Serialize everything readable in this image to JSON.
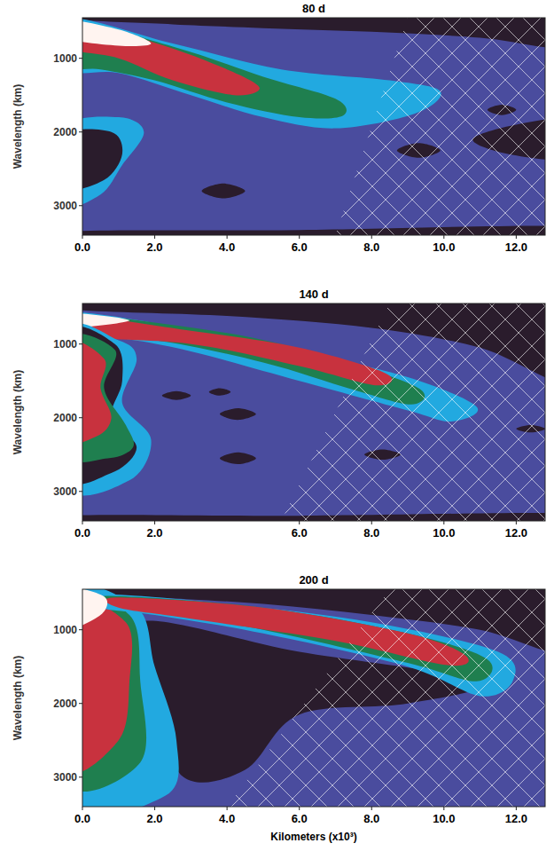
{
  "chart_data": [
    {
      "type": "contour",
      "title": "80 d",
      "ylabel": "Wavelength (km)",
      "color": "#4a4c9e",
      "xlim": [
        0,
        12.8
      ],
      "ylim": [
        450,
        3400
      ],
      "xticks": [
        {
          "value": 0,
          "label": "0.0"
        },
        {
          "value": 2,
          "label": "2.0"
        },
        {
          "value": 4,
          "label": "4.0"
        },
        {
          "value": 6,
          "label": "6.0"
        },
        {
          "value": 8,
          "label": "8.0"
        },
        {
          "value": 10,
          "label": "10.0"
        },
        {
          "value": 12,
          "label": "12.0"
        }
      ],
      "yticks": [
        1000,
        2000,
        3000
      ],
      "contours": [
        {
          "color": "#2a1c2c",
          "x": [
            -0.5,
            13.5,
            13.5,
            11,
            8,
            5,
            2.5,
            -0.5
          ],
          "y": [
            300,
            300,
            850,
            720,
            640,
            590,
            540,
            460
          ]
        },
        {
          "color": "#22a9e0",
          "x": [
            -0.5,
            1,
            1.7,
            1.1,
            0.5,
            -0.5
          ],
          "y": [
            1950,
            1800,
            2000,
            2450,
            2850,
            2950
          ]
        },
        {
          "color": "#2a1c2c",
          "x": [
            -0.5,
            0.8,
            1.1,
            0.6,
            -0.5
          ],
          "y": [
            2050,
            2000,
            2300,
            2650,
            2750
          ]
        },
        {
          "color": "#2a1c2c",
          "x": [
            3.3,
            3.9,
            4.5,
            3.9
          ],
          "y": [
            2800,
            2700,
            2800,
            2900
          ]
        },
        {
          "color": "#2a1c2c",
          "x": [
            8.7,
            9.3,
            9.9,
            9.3
          ],
          "y": [
            2250,
            2150,
            2250,
            2350
          ]
        },
        {
          "color": "#2a1c2c",
          "x": [
            10.8,
            12,
            13.5,
            13.5,
            11.8
          ],
          "y": [
            2100,
            1900,
            1850,
            2350,
            2300
          ]
        },
        {
          "color": "#2a1c2c",
          "x": [
            11.2,
            11.6,
            12,
            11.6
          ],
          "y": [
            1700,
            1630,
            1700,
            1770
          ]
        },
        {
          "color": "#2a1c2c",
          "x": [
            -0.5,
            6,
            13.5,
            13.5,
            -0.5
          ],
          "y": [
            3350,
            3330,
            3280,
            3500,
            3500
          ]
        },
        {
          "color": "#22a9e0",
          "x": [
            -0.5,
            2.5,
            5.5,
            8.5,
            9.9,
            9.2,
            7,
            5,
            3,
            1,
            -0.5
          ],
          "y": [
            460,
            800,
            1150,
            1300,
            1450,
            1750,
            1950,
            1800,
            1500,
            1200,
            1150
          ]
        },
        {
          "color": "#1f7f4f",
          "x": [
            -0.5,
            2.5,
            5,
            7,
            7.2,
            6,
            4,
            2,
            0.5,
            -0.5
          ],
          "y": [
            500,
            840,
            1250,
            1550,
            1780,
            1800,
            1600,
            1300,
            1150,
            1100
          ]
        },
        {
          "color": "#c8323e",
          "x": [
            -0.5,
            2,
            4,
            4.9,
            4.2,
            2.5,
            1,
            -0.5
          ],
          "y": [
            500,
            790,
            1150,
            1400,
            1500,
            1300,
            1000,
            850
          ]
        },
        {
          "color": "#fff4f0",
          "x": [
            -0.5,
            1,
            1.9,
            1,
            -0.5
          ],
          "y": [
            480,
            610,
            800,
            830,
            720
          ]
        }
      ],
      "hatched_region": {
        "x": [
          9,
          12.8,
          12.8,
          7
        ],
        "y": [
          450,
          450,
          3400,
          3400
        ]
      }
    },
    {
      "type": "contour",
      "title": "140 d",
      "ylabel": "Wavelength (km)",
      "color": "#4a4c9e",
      "xlim": [
        0,
        12.8
      ],
      "ylim": [
        450,
        3400
      ],
      "xticks": [
        {
          "value": 0,
          "label": "0.0"
        },
        {
          "value": 2,
          "label": "2.0"
        },
        {
          "value": 6,
          "label": "6.0"
        },
        {
          "value": 8,
          "label": "8.0"
        },
        {
          "value": 10,
          "label": "10.0"
        },
        {
          "value": 12,
          "label": "12.0"
        }
      ],
      "yticks": [
        1000,
        2000,
        3000
      ],
      "contours": [
        {
          "color": "#2a1c2c",
          "x": [
            -0.5,
            13.5,
            13.5,
            11,
            8,
            4,
            -0.5
          ],
          "y": [
            300,
            300,
            1500,
            1050,
            780,
            620,
            520
          ]
        },
        {
          "color": "#2a1c2c",
          "x": [
            2.2,
            2.6,
            3,
            2.6
          ],
          "y": [
            1700,
            1640,
            1700,
            1760
          ]
        },
        {
          "color": "#2a1c2c",
          "x": [
            3.5,
            3.8,
            4.1,
            3.8
          ],
          "y": [
            1650,
            1600,
            1650,
            1700
          ]
        },
        {
          "color": "#2a1c2c",
          "x": [
            3.8,
            4.3,
            4.8,
            4.3
          ],
          "y": [
            1950,
            1870,
            1950,
            2030
          ]
        },
        {
          "color": "#2a1c2c",
          "x": [
            3.8,
            4.3,
            4.8,
            4.3
          ],
          "y": [
            2550,
            2470,
            2550,
            2630
          ]
        },
        {
          "color": "#2a1c2c",
          "x": [
            7.8,
            8.3,
            8.8,
            8.3
          ],
          "y": [
            2500,
            2430,
            2500,
            2570
          ]
        },
        {
          "color": "#2a1c2c",
          "x": [
            12,
            12.4,
            12.8,
            12.4
          ],
          "y": [
            2150,
            2100,
            2150,
            2200
          ]
        },
        {
          "color": "#2a1c2c",
          "x": [
            -0.5,
            6,
            13.5,
            13.5,
            -0.5
          ],
          "y": [
            3330,
            3330,
            3300,
            3500,
            3500
          ]
        },
        {
          "color": "#22a9e0",
          "x": [
            -0.5,
            3,
            6,
            9,
            10.9,
            10.2,
            9,
            6,
            3,
            1,
            -0.5
          ],
          "y": [
            560,
            800,
            1100,
            1450,
            1850,
            2050,
            1900,
            1500,
            1100,
            920,
            900
          ]
        },
        {
          "color": "#1f7f4f",
          "x": [
            -0.5,
            4,
            7,
            9.3,
            9.1,
            7.5,
            5,
            2,
            -0.5
          ],
          "y": [
            590,
            850,
            1200,
            1600,
            1820,
            1620,
            1250,
            950,
            900
          ]
        },
        {
          "color": "#c8323e",
          "x": [
            -0.5,
            3,
            6,
            8.4,
            8.1,
            6,
            3,
            -0.5
          ],
          "y": [
            600,
            820,
            1050,
            1400,
            1560,
            1300,
            1000,
            880
          ]
        },
        {
          "color": "#fff4f0",
          "x": [
            -0.5,
            1.3,
            -0.5
          ],
          "y": [
            580,
            680,
            780
          ]
        },
        {
          "color": "#22a9e0",
          "x": [
            -0.5,
            1,
            1.5,
            1.1,
            1.9,
            1.3,
            -0.5
          ],
          "y": [
            850,
            950,
            1200,
            1800,
            2300,
            2850,
            2900
          ]
        },
        {
          "color": "#2a1c2c",
          "x": [
            -0.5,
            0.9,
            1.1,
            0.8,
            1.5,
            0.8,
            -0.5
          ],
          "y": [
            880,
            1000,
            1500,
            2000,
            2400,
            2750,
            2750
          ]
        },
        {
          "color": "#1f7f4f",
          "x": [
            -0.5,
            0.9,
            0.6,
            1.2,
            1.4,
            0.7,
            -0.5
          ],
          "y": [
            950,
            1080,
            1600,
            2100,
            2400,
            2550,
            2450
          ]
        },
        {
          "color": "#c8323e",
          "x": [
            -0.5,
            0.6,
            0.5,
            0.8,
            0.4,
            -0.5
          ],
          "y": [
            1000,
            1200,
            1600,
            2000,
            2250,
            2250
          ]
        }
      ],
      "hatched_region": {
        "x": [
          8.5,
          12.8,
          12.8,
          5.5
        ],
        "y": [
          450,
          450,
          3400,
          3400
        ]
      }
    },
    {
      "type": "contour",
      "title": "200 d",
      "ylabel": "Wavelength (km)",
      "xlabel": "Kilometers (x10³)",
      "color": "#4a4c9e",
      "xlim": [
        0,
        12.8
      ],
      "ylim": [
        450,
        3400
      ],
      "xticks": [
        {
          "value": 0,
          "label": "0.0"
        },
        {
          "value": 2,
          "label": "2.0"
        },
        {
          "value": 4,
          "label": "4.0"
        },
        {
          "value": 6,
          "label": "6.0"
        },
        {
          "value": 8,
          "label": "8.0"
        },
        {
          "value": 10,
          "label": "10.0"
        },
        {
          "value": 12,
          "label": "12.0"
        }
      ],
      "yticks": [
        1000,
        2000,
        3000
      ],
      "contours": [
        {
          "color": "#2a1c2c",
          "x": [
            -0.5,
            13.5,
            13.5,
            11,
            8,
            5,
            2,
            -0.5
          ],
          "y": [
            300,
            300,
            1300,
            1000,
            800,
            650,
            560,
            500
          ]
        },
        {
          "color": "#2a1c2c",
          "x": [
            1.5,
            6,
            11,
            9,
            6,
            4.5,
            2.8,
            2
          ],
          "y": [
            900,
            1300,
            1700,
            2000,
            2150,
            2900,
            3000,
            2000
          ]
        },
        {
          "color": "#22a9e0",
          "x": [
            -0.5,
            1.5,
            2,
            2.6,
            2.3,
            -0.5
          ],
          "y": [
            600,
            700,
            1500,
            2500,
            3250,
            3350
          ]
        },
        {
          "color": "#1f7f4f",
          "x": [
            -0.5,
            1.3,
            1.6,
            1.6,
            -0.5
          ],
          "y": [
            650,
            800,
            1700,
            2800,
            3050
          ]
        },
        {
          "color": "#c8323e",
          "x": [
            -0.5,
            1.2,
            1.3,
            1,
            -0.5
          ],
          "y": [
            700,
            900,
            1700,
            2500,
            2850
          ]
        },
        {
          "color": "#22a9e0",
          "x": [
            0.5,
            4,
            8,
            11.5,
            11.9,
            11,
            9,
            5,
            2,
            0.5
          ],
          "y": [
            520,
            650,
            900,
            1300,
            1700,
            1900,
            1500,
            1050,
            800,
            700
          ]
        },
        {
          "color": "#1f7f4f",
          "x": [
            0.8,
            5,
            9,
            11.2,
            10.9,
            9,
            5,
            2,
            0.8
          ],
          "y": [
            540,
            700,
            1050,
            1400,
            1700,
            1450,
            1000,
            760,
            650
          ]
        },
        {
          "color": "#c8323e",
          "x": [
            1,
            5,
            9,
            10.6,
            10.1,
            7,
            3,
            1
          ],
          "y": [
            560,
            700,
            1050,
            1350,
            1480,
            1150,
            850,
            700
          ]
        },
        {
          "color": "#fff4f0",
          "x": [
            -0.5,
            0.6,
            0.5,
            -0.5
          ],
          "y": [
            450,
            550,
            800,
            980
          ]
        }
      ],
      "hatched_region": {
        "x": [
          8.5,
          12.8,
          12.8,
          4
        ],
        "y": [
          450,
          450,
          3400,
          3400
        ]
      }
    }
  ]
}
